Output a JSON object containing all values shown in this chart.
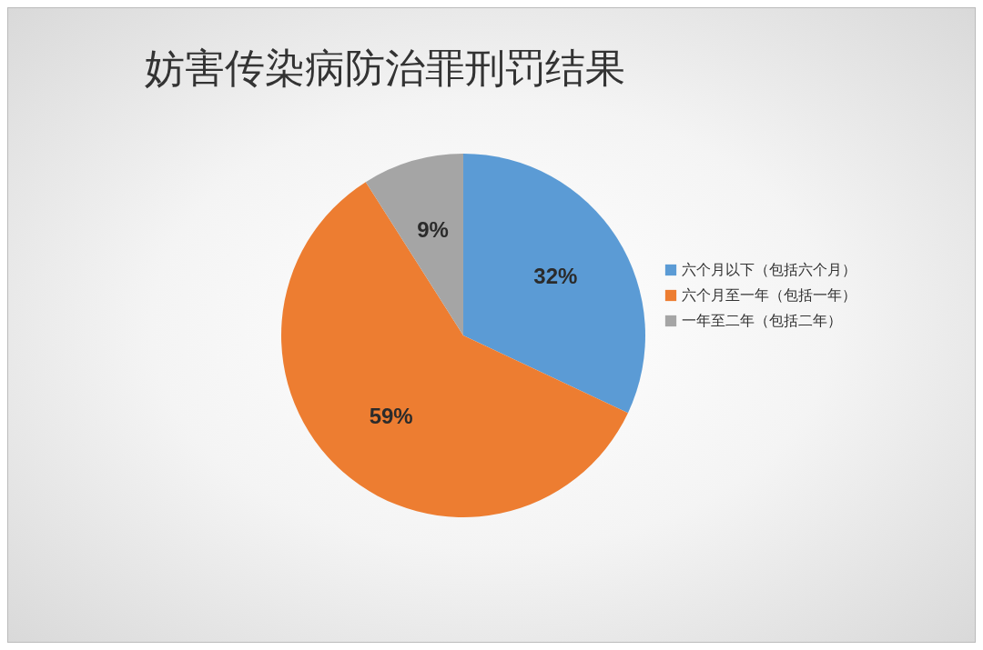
{
  "chart_data": {
    "type": "pie",
    "title": "妨害传染病防治罪刑罚结果",
    "categories": [
      "六个月以下（包括六个月）",
      "六个月至一年（包括一年）",
      "一年至二年（包括二年）"
    ],
    "values": [
      32,
      59,
      9
    ],
    "colors": [
      "#5b9bd5",
      "#ed7d31",
      "#a5a5a5"
    ],
    "value_labels": [
      "32%",
      "59%",
      "9%"
    ],
    "legend": "right"
  }
}
